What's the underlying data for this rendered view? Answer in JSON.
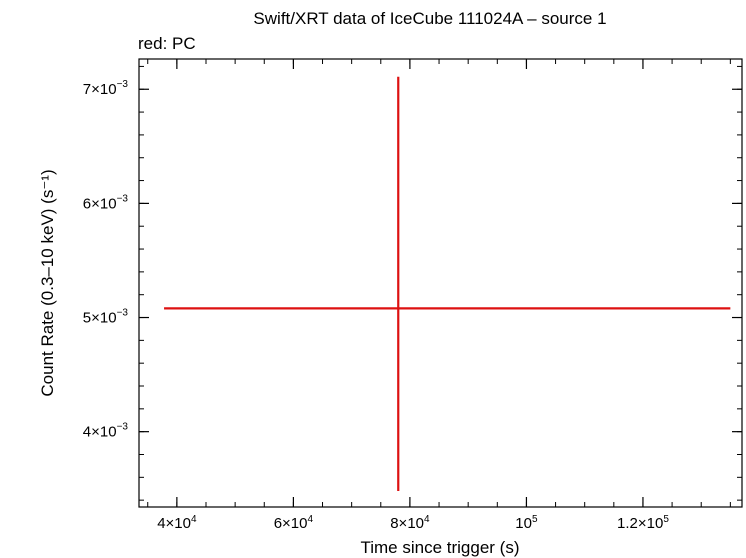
{
  "chart_data": {
    "type": "scatter",
    "title": "Swift/XRT data of IceCube 111024A – source 1",
    "subtitle": "red: PC",
    "xlabel": "Time since trigger (s)",
    "ylabel": "Count Rate (0.3–10 keV) (s⁻¹)",
    "xlim": [
      33500,
      137000
    ],
    "ylim": [
      0.00334,
      0.007265
    ],
    "x_ticks": [
      {
        "value": 40000,
        "mant": "4×10",
        "exp": "4"
      },
      {
        "value": 60000,
        "mant": "6×10",
        "exp": "4"
      },
      {
        "value": 80000,
        "mant": "8×10",
        "exp": "4"
      },
      {
        "value": 100000,
        "mant": "10",
        "exp": "5"
      },
      {
        "value": 120000,
        "mant": "1.2×10",
        "exp": "5"
      }
    ],
    "y_ticks": [
      {
        "value": 0.004,
        "mant": "4×10",
        "exp": "−3"
      },
      {
        "value": 0.005,
        "mant": "5×10",
        "exp": "−3"
      },
      {
        "value": 0.006,
        "mant": "6×10",
        "exp": "−3"
      },
      {
        "value": 0.007,
        "mant": "7×10",
        "exp": "−3"
      }
    ],
    "x_minor_step": 5000,
    "y_minor_step": 0.0002,
    "series": [
      {
        "name": "PC",
        "color": "#dd1111",
        "points": [
          {
            "x": 78000,
            "y": 0.00508,
            "x_lo": 37800,
            "x_hi": 135000,
            "y_lo": 0.00348,
            "y_hi": 0.00711
          }
        ]
      }
    ]
  }
}
